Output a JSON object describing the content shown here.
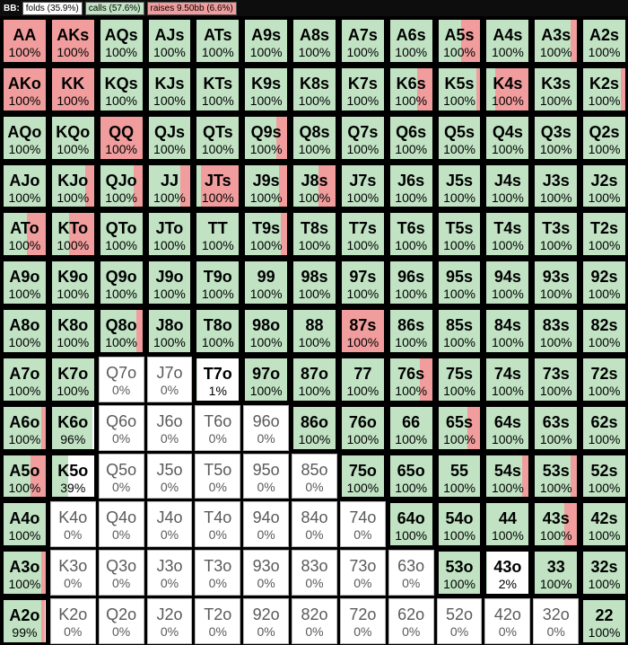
{
  "header": {
    "label": "BB:",
    "legend": [
      {
        "key": "folds",
        "text": "folds (35.9%)",
        "color": "#ffffff"
      },
      {
        "key": "calls",
        "text": "calls (57.6%)",
        "color": "#c1e3c4"
      },
      {
        "key": "raises",
        "text": "raises 9.50bb (6.6%)",
        "color": "#f19d9d"
      }
    ]
  },
  "colors": {
    "fold": "#ffffff",
    "call": "#c1e3c4",
    "raise": "#f19d9d",
    "cell_border_active": "#000000",
    "cell_border_zero": "#b8b8b8"
  },
  "rows": [
    [
      [
        "AA",
        "100%",
        1.0,
        0.0
      ],
      [
        "AKs",
        "100%",
        1.0,
        0.0
      ],
      [
        "AQs",
        "100%",
        0.0,
        0.0
      ],
      [
        "AJs",
        "100%",
        0.0,
        0.0
      ],
      [
        "ATs",
        "100%",
        0.0,
        0.0
      ],
      [
        "A9s",
        "100%",
        0.0,
        0.0
      ],
      [
        "A8s",
        "100%",
        0.0,
        0.0
      ],
      [
        "A7s",
        "100%",
        0.0,
        0.0
      ],
      [
        "A6s",
        "100%",
        0.0,
        0.0
      ],
      [
        "A5s",
        "100%",
        0.45,
        0.0
      ],
      [
        "A4s",
        "100%",
        0.0,
        0.0
      ],
      [
        "A3s",
        "100%",
        0.15,
        0.0
      ],
      [
        "A2s",
        "100%",
        0.0,
        0.0
      ]
    ],
    [
      [
        "AKo",
        "100%",
        1.0,
        0.0
      ],
      [
        "KK",
        "100%",
        1.0,
        0.0
      ],
      [
        "KQs",
        "100%",
        0.0,
        0.0
      ],
      [
        "KJs",
        "100%",
        0.0,
        0.0
      ],
      [
        "KTs",
        "100%",
        0.0,
        0.0
      ],
      [
        "K9s",
        "100%",
        0.0,
        0.0
      ],
      [
        "K8s",
        "100%",
        0.0,
        0.0
      ],
      [
        "K7s",
        "100%",
        0.0,
        0.0
      ],
      [
        "K6s",
        "100%",
        0.35,
        0.0
      ],
      [
        "K5s",
        "100%",
        0.1,
        0.0
      ],
      [
        "K4s",
        "100%",
        0.8,
        0.0
      ],
      [
        "K3s",
        "100%",
        0.0,
        0.0
      ],
      [
        "K2s",
        "100%",
        0.1,
        0.0
      ]
    ],
    [
      [
        "AQo",
        "100%",
        0.0,
        0.0
      ],
      [
        "KQo",
        "100%",
        0.0,
        0.0
      ],
      [
        "QQ",
        "100%",
        1.0,
        0.0
      ],
      [
        "QJs",
        "100%",
        0.0,
        0.0
      ],
      [
        "QTs",
        "100%",
        0.0,
        0.0
      ],
      [
        "Q9s",
        "100%",
        0.25,
        0.0
      ],
      [
        "Q8s",
        "100%",
        0.0,
        0.0
      ],
      [
        "Q7s",
        "100%",
        0.0,
        0.0
      ],
      [
        "Q6s",
        "100%",
        0.0,
        0.0
      ],
      [
        "Q5s",
        "100%",
        0.0,
        0.0
      ],
      [
        "Q4s",
        "100%",
        0.0,
        0.0
      ],
      [
        "Q3s",
        "100%",
        0.0,
        0.0
      ],
      [
        "Q2s",
        "100%",
        0.0,
        0.0
      ]
    ],
    [
      [
        "AJo",
        "100%",
        0.0,
        0.0
      ],
      [
        "KJo",
        "100%",
        0.2,
        0.0
      ],
      [
        "QJo",
        "100%",
        0.2,
        0.0
      ],
      [
        "JJ",
        "100%",
        0.25,
        0.0
      ],
      [
        "JTs",
        "100%",
        0.9,
        0.0
      ],
      [
        "J9s",
        "100%",
        0.2,
        0.0
      ],
      [
        "J8s",
        "100%",
        0.4,
        0.0
      ],
      [
        "J7s",
        "100%",
        0.0,
        0.0
      ],
      [
        "J6s",
        "100%",
        0.0,
        0.0
      ],
      [
        "J5s",
        "100%",
        0.0,
        0.0
      ],
      [
        "J4s",
        "100%",
        0.0,
        0.0
      ],
      [
        "J3s",
        "100%",
        0.0,
        0.0
      ],
      [
        "J2s",
        "100%",
        0.0,
        0.0
      ]
    ],
    [
      [
        "ATo",
        "100%",
        0.45,
        0.0
      ],
      [
        "KTo",
        "100%",
        0.6,
        0.0
      ],
      [
        "QTo",
        "100%",
        0.0,
        0.0
      ],
      [
        "JTo",
        "100%",
        0.0,
        0.0
      ],
      [
        "TT",
        "100%",
        0.0,
        0.0
      ],
      [
        "T9s",
        "100%",
        0.15,
        0.0
      ],
      [
        "T8s",
        "100%",
        0.0,
        0.0
      ],
      [
        "T7s",
        "100%",
        0.0,
        0.0
      ],
      [
        "T6s",
        "100%",
        0.0,
        0.0
      ],
      [
        "T5s",
        "100%",
        0.0,
        0.0
      ],
      [
        "T4s",
        "100%",
        0.0,
        0.0
      ],
      [
        "T3s",
        "100%",
        0.0,
        0.0
      ],
      [
        "T2s",
        "100%",
        0.0,
        0.0
      ]
    ],
    [
      [
        "A9o",
        "100%",
        0.0,
        0.0
      ],
      [
        "K9o",
        "100%",
        0.0,
        0.0
      ],
      [
        "Q9o",
        "100%",
        0.0,
        0.0
      ],
      [
        "J9o",
        "100%",
        0.0,
        0.0
      ],
      [
        "T9o",
        "100%",
        0.0,
        0.0
      ],
      [
        "99",
        "100%",
        0.0,
        0.0
      ],
      [
        "98s",
        "100%",
        0.0,
        0.0
      ],
      [
        "97s",
        "100%",
        0.0,
        0.0
      ],
      [
        "96s",
        "100%",
        0.0,
        0.0
      ],
      [
        "95s",
        "100%",
        0.0,
        0.0
      ],
      [
        "94s",
        "100%",
        0.0,
        0.0
      ],
      [
        "93s",
        "100%",
        0.0,
        0.0
      ],
      [
        "92s",
        "100%",
        0.0,
        0.0
      ]
    ],
    [
      [
        "A8o",
        "100%",
        0.0,
        0.0
      ],
      [
        "K8o",
        "100%",
        0.0,
        0.0
      ],
      [
        "Q8o",
        "100%",
        0.15,
        0.0
      ],
      [
        "J8o",
        "100%",
        0.0,
        0.0
      ],
      [
        "T8o",
        "100%",
        0.0,
        0.0
      ],
      [
        "98o",
        "100%",
        0.0,
        0.0
      ],
      [
        "88",
        "100%",
        0.0,
        0.0
      ],
      [
        "87s",
        "100%",
        1.0,
        0.0
      ],
      [
        "86s",
        "100%",
        0.0,
        0.0
      ],
      [
        "85s",
        "100%",
        0.0,
        0.0
      ],
      [
        "84s",
        "100%",
        0.0,
        0.0
      ],
      [
        "83s",
        "100%",
        0.0,
        0.0
      ],
      [
        "82s",
        "100%",
        0.0,
        0.0
      ]
    ],
    [
      [
        "A7o",
        "100%",
        0.0,
        0.0
      ],
      [
        "K7o",
        "100%",
        0.0,
        0.0
      ],
      [
        "Q7o",
        "0%",
        0.0,
        1.0
      ],
      [
        "J7o",
        "0%",
        0.0,
        1.0
      ],
      [
        "T7o",
        "1%",
        0.0,
        0.99
      ],
      [
        "97o",
        "100%",
        0.0,
        0.0
      ],
      [
        "87o",
        "100%",
        0.0,
        0.0
      ],
      [
        "77",
        "100%",
        0.0,
        0.0
      ],
      [
        "76s",
        "100%",
        0.3,
        0.0
      ],
      [
        "75s",
        "100%",
        0.0,
        0.0
      ],
      [
        "74s",
        "100%",
        0.0,
        0.0
      ],
      [
        "73s",
        "100%",
        0.0,
        0.0
      ],
      [
        "72s",
        "100%",
        0.0,
        0.0
      ]
    ],
    [
      [
        "A6o",
        "100%",
        0.1,
        0.0
      ],
      [
        "K6o",
        "96%",
        0.0,
        0.04
      ],
      [
        "Q6o",
        "0%",
        0.0,
        1.0
      ],
      [
        "J6o",
        "0%",
        0.0,
        1.0
      ],
      [
        "T6o",
        "0%",
        0.0,
        1.0
      ],
      [
        "96o",
        "0%",
        0.0,
        1.0
      ],
      [
        "86o",
        "100%",
        0.0,
        0.0
      ],
      [
        "76o",
        "100%",
        0.0,
        0.0
      ],
      [
        "66",
        "100%",
        0.0,
        0.0
      ],
      [
        "65s",
        "100%",
        0.3,
        0.0
      ],
      [
        "64s",
        "100%",
        0.0,
        0.0
      ],
      [
        "63s",
        "100%",
        0.0,
        0.0
      ],
      [
        "62s",
        "100%",
        0.0,
        0.0
      ]
    ],
    [
      [
        "A5o",
        "100%",
        0.35,
        0.0
      ],
      [
        "K5o",
        "39%",
        0.0,
        0.61
      ],
      [
        "Q5o",
        "0%",
        0.0,
        1.0
      ],
      [
        "J5o",
        "0%",
        0.0,
        1.0
      ],
      [
        "T5o",
        "0%",
        0.0,
        1.0
      ],
      [
        "95o",
        "0%",
        0.0,
        1.0
      ],
      [
        "85o",
        "0%",
        0.0,
        1.0
      ],
      [
        "75o",
        "100%",
        0.0,
        0.0
      ],
      [
        "65o",
        "100%",
        0.0,
        0.0
      ],
      [
        "55",
        "100%",
        0.0,
        0.0
      ],
      [
        "54s",
        "100%",
        0.15,
        0.0
      ],
      [
        "53s",
        "100%",
        0.15,
        0.0
      ],
      [
        "52s",
        "100%",
        0.0,
        0.0
      ]
    ],
    [
      [
        "A4o",
        "100%",
        0.0,
        0.0
      ],
      [
        "K4o",
        "0%",
        0.0,
        1.0
      ],
      [
        "Q4o",
        "0%",
        0.0,
        1.0
      ],
      [
        "J4o",
        "0%",
        0.0,
        1.0
      ],
      [
        "T4o",
        "0%",
        0.0,
        1.0
      ],
      [
        "94o",
        "0%",
        0.0,
        1.0
      ],
      [
        "84o",
        "0%",
        0.0,
        1.0
      ],
      [
        "74o",
        "0%",
        0.0,
        1.0
      ],
      [
        "64o",
        "100%",
        0.0,
        0.0
      ],
      [
        "54o",
        "100%",
        0.0,
        0.0
      ],
      [
        "44",
        "100%",
        0.0,
        0.0
      ],
      [
        "43s",
        "100%",
        0.3,
        0.0
      ],
      [
        "42s",
        "100%",
        0.0,
        0.0
      ]
    ],
    [
      [
        "A3o",
        "100%",
        0.1,
        0.0
      ],
      [
        "K3o",
        "0%",
        0.0,
        1.0
      ],
      [
        "Q3o",
        "0%",
        0.0,
        1.0
      ],
      [
        "J3o",
        "0%",
        0.0,
        1.0
      ],
      [
        "T3o",
        "0%",
        0.0,
        1.0
      ],
      [
        "93o",
        "0%",
        0.0,
        1.0
      ],
      [
        "83o",
        "0%",
        0.0,
        1.0
      ],
      [
        "73o",
        "0%",
        0.0,
        1.0
      ],
      [
        "63o",
        "0%",
        0.0,
        1.0
      ],
      [
        "53o",
        "100%",
        0.0,
        0.0
      ],
      [
        "43o",
        "2%",
        0.0,
        0.98
      ],
      [
        "33",
        "100%",
        0.0,
        0.0
      ],
      [
        "32s",
        "100%",
        0.0,
        0.0
      ]
    ],
    [
      [
        "A2o",
        "99%",
        0.1,
        0.01
      ],
      [
        "K2o",
        "0%",
        0.0,
        1.0
      ],
      [
        "Q2o",
        "0%",
        0.0,
        1.0
      ],
      [
        "J2o",
        "0%",
        0.0,
        1.0
      ],
      [
        "T2o",
        "0%",
        0.0,
        1.0
      ],
      [
        "92o",
        "0%",
        0.0,
        1.0
      ],
      [
        "82o",
        "0%",
        0.0,
        1.0
      ],
      [
        "72o",
        "0%",
        0.0,
        1.0
      ],
      [
        "62o",
        "0%",
        0.0,
        1.0
      ],
      [
        "52o",
        "0%",
        0.0,
        1.0
      ],
      [
        "42o",
        "0%",
        0.0,
        1.0
      ],
      [
        "32o",
        "0%",
        0.0,
        1.0
      ],
      [
        "22",
        "100%",
        0.0,
        0.0
      ]
    ]
  ]
}
